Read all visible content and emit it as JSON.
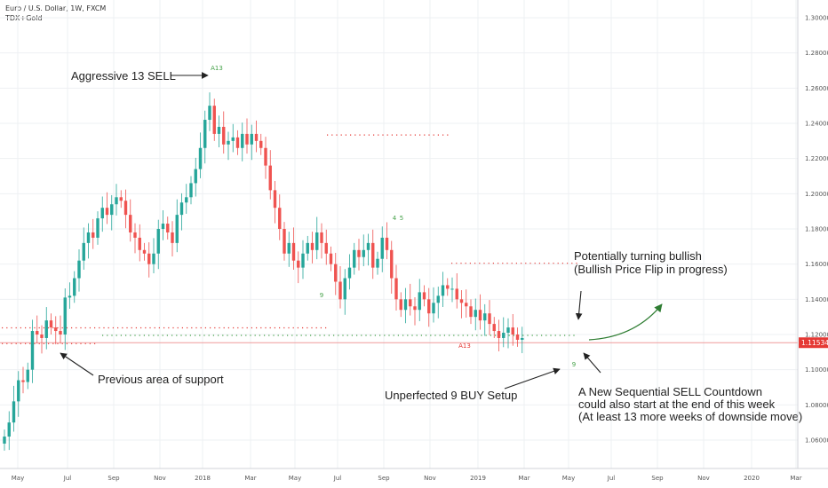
{
  "header": {
    "symbol_line": "Euro / U.S. Dollar, 1W, FXCM",
    "indicator": "TDX+Gold"
  },
  "chart_data": {
    "type": "candlestick",
    "ylim": [
      1.05,
      1.31
    ],
    "y_ticks": [
      1.06,
      1.08,
      1.1,
      1.12,
      1.14,
      1.16,
      1.18,
      1.2,
      1.22,
      1.24,
      1.26,
      1.28,
      1.3
    ],
    "y_tick_labels": [
      "1.06000",
      "1.08000",
      "1.10000",
      "1.12000",
      "1.14000",
      "1.16000",
      "1.18000",
      "1.20000",
      "1.22000",
      "1.24000",
      "1.26000",
      "1.28000",
      "1.30000"
    ],
    "x_labels": [
      "May",
      "Jul",
      "Sep",
      "Nov",
      "2018",
      "Mar",
      "May",
      "Jul",
      "Sep",
      "Nov",
      "2019",
      "Mar",
      "May",
      "Jul",
      "Sep",
      "Nov",
      "2020",
      "Mar"
    ],
    "current_price": "1.11534",
    "closes": [
      1.062,
      1.07,
      1.082,
      1.094,
      1.093,
      1.1,
      1.122,
      1.12,
      1.118,
      1.128,
      1.124,
      1.122,
      1.12,
      1.141,
      1.142,
      1.152,
      1.162,
      1.172,
      1.178,
      1.175,
      1.186,
      1.192,
      1.188,
      1.194,
      1.198,
      1.196,
      1.188,
      1.178,
      1.175,
      1.168,
      1.166,
      1.16,
      1.166,
      1.18,
      1.183,
      1.178,
      1.172,
      1.188,
      1.195,
      1.198,
      1.206,
      1.214,
      1.226,
      1.242,
      1.25,
      1.234,
      1.238,
      1.228,
      1.23,
      1.232,
      1.226,
      1.234,
      1.228,
      1.234,
      1.23,
      1.226,
      1.216,
      1.202,
      1.192,
      1.18,
      1.166,
      1.172,
      1.162,
      1.158,
      1.166,
      1.172,
      1.168,
      1.178,
      1.172,
      1.166,
      1.16,
      1.15,
      1.14,
      1.152,
      1.158,
      1.168,
      1.164,
      1.168,
      1.172,
      1.158,
      1.163,
      1.175,
      1.168,
      1.152,
      1.14,
      1.134,
      1.14,
      1.136,
      1.134,
      1.144,
      1.14,
      1.132,
      1.138,
      1.142,
      1.148,
      1.146,
      1.146,
      1.14,
      1.138,
      1.136,
      1.13,
      1.134,
      1.128,
      1.132,
      1.126,
      1.122,
      1.118,
      1.121,
      1.124,
      1.12,
      1.117,
      1.118
    ],
    "supports": [
      {
        "y": 1.1238,
        "color": "#e53935"
      },
      {
        "y": 1.1148,
        "color": "#e53935"
      },
      {
        "y": 1.1195,
        "color": "#43a047"
      },
      {
        "y": 1.2334,
        "color": "#e53935"
      },
      {
        "y": 1.1605,
        "color": "#e53935"
      }
    ],
    "labels": {
      "a13_sell": "A13",
      "a13_buy": "A13",
      "nine_buy": "9",
      "nine_buy_2": "9",
      "four": "4",
      "five": "5"
    },
    "annotations": {
      "aggressive": "Aggressive 13 SELL",
      "prev_support": "Previous area of support",
      "potential_line1": "Potentially turning bullish",
      "potential_line2": "(Bullish Price Flip in progress)",
      "unperfected": "Unperfected 9 BUY Setup",
      "new_seq_line1": "A New Sequential SELL Countdown",
      "new_seq_line2": "could also start at the end of this week",
      "new_seq_line3": "(At least 13 more weeks of downside move)"
    }
  }
}
